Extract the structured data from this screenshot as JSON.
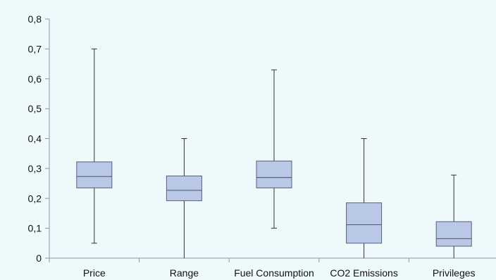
{
  "colors": {
    "background": "#eef9fb",
    "box_fill": "#b8c8e6",
    "box_stroke": "#5a6078",
    "whisker": "#333333",
    "axis": "#8f98a8"
  },
  "chart_data": {
    "type": "boxplot",
    "title": "",
    "xlabel": "",
    "ylabel": "",
    "ylim": [
      0,
      0.8
    ],
    "yticks": [
      0,
      0.1,
      0.2,
      0.3,
      0.4,
      0.5,
      0.6,
      0.7,
      0.8
    ],
    "ytick_labels": [
      "0",
      "0,1",
      "0,2",
      "0,3",
      "0,4",
      "0,5",
      "0,6",
      "0,7",
      "0,8"
    ],
    "grid": false,
    "categories": [
      "Price",
      "Range",
      "Fuel Consumption",
      "CO2 Emissions",
      "Privileges"
    ],
    "boxes": [
      {
        "category": "Price",
        "min": 0.05,
        "q1": 0.235,
        "median": 0.273,
        "q3": 0.322,
        "max": 0.7
      },
      {
        "category": "Range",
        "min": 0.0,
        "q1": 0.192,
        "median": 0.227,
        "q3": 0.275,
        "max": 0.4
      },
      {
        "category": "Fuel Consumption",
        "min": 0.1,
        "q1": 0.235,
        "median": 0.27,
        "q3": 0.325,
        "max": 0.63
      },
      {
        "category": "CO2 Emissions",
        "min": 0.0,
        "q1": 0.05,
        "median": 0.112,
        "q3": 0.185,
        "max": 0.4
      },
      {
        "category": "Privileges",
        "min": 0.0,
        "q1": 0.04,
        "median": 0.065,
        "q3": 0.122,
        "max": 0.278
      }
    ]
  }
}
